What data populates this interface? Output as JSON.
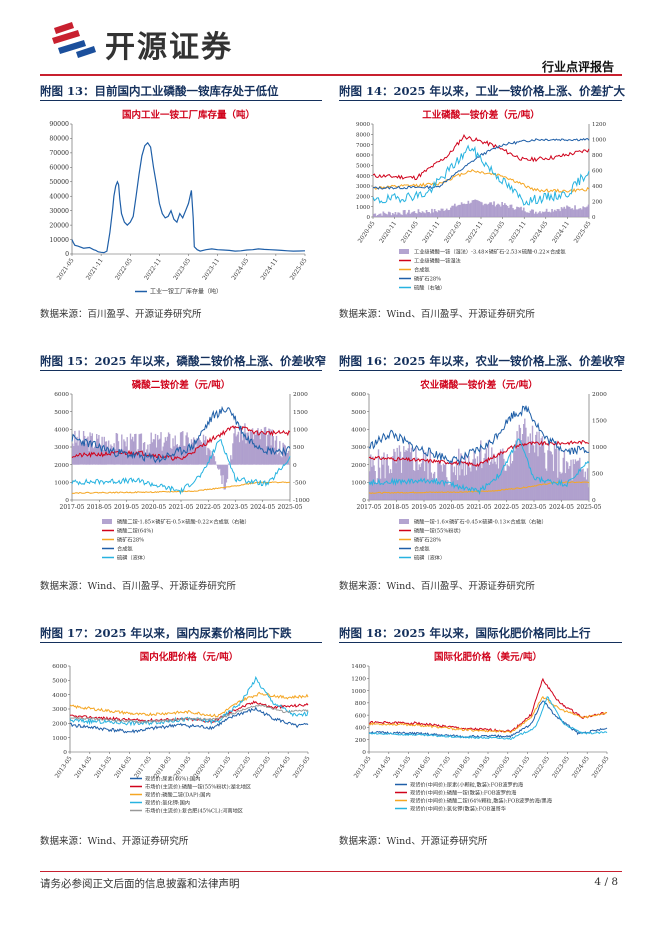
{
  "header": {
    "logo_text": "开源证券",
    "doc_type": "行业点评报告"
  },
  "colors": {
    "brand_red": "#c8202f",
    "brand_blue": "#1b4f9c",
    "title_navy": "#14305c",
    "chart_title_red": "#d0021b"
  },
  "figures": [
    {
      "title": "附图 13：目前国内工业磷酸一铵库存处于低位",
      "source": "数据来源：百川盈孚、开源证券研究所"
    },
    {
      "title": "附图 14：2025 年以来，工业一铵价格上涨、价差扩大",
      "source": "数据来源：Wind、百川盈孚、开源证券研究所"
    },
    {
      "title": "附图 15：2025 年以来，磷酸二铵价格上涨、价差收窄",
      "source": "数据来源：Wind、百川盈孚、开源证券研究所"
    },
    {
      "title": "附图 16：2025 年以来，农业一铵价格上涨、价差收窄",
      "source": "数据来源：Wind、百川盈孚、开源证券研究所"
    },
    {
      "title": "附图 17：2025 年以来，国内尿素价格同比下跌",
      "source": "数据来源：Wind、开源证券研究所"
    },
    {
      "title": "附图 18：2025 年以来，国际化肥价格同比上行",
      "source": "数据来源：Wind、开源证券研究所"
    }
  ],
  "chart_data": [
    {
      "id": "fig13",
      "type": "line",
      "title": "国内工业一铵工厂库存量（吨）",
      "x_ticks": [
        "2021-05",
        "2021-11",
        "2022-05",
        "2022-11",
        "2023-05",
        "2023-11",
        "2024-05",
        "2024-11",
        "2025-05"
      ],
      "y_ticks": [
        0,
        10000,
        20000,
        30000,
        40000,
        50000,
        60000,
        70000,
        80000,
        90000
      ],
      "ylim": [
        0,
        90000
      ],
      "series": [
        {
          "name": "工业一铵工厂库存量（吨）",
          "color": "#1f5fa8",
          "x": [
            0,
            0.02,
            0.05,
            0.1,
            0.2,
            0.3,
            0.37,
            0.41,
            0.43,
            0.45,
            0.5,
            0.55,
            0.6,
            0.65,
            0.7,
            0.72,
            0.75,
            0.78,
            0.8,
            0.82,
            0.85,
            0.9,
            0.95,
            1.0,
            1.05,
            1.1,
            1.15,
            1.2,
            1.25,
            1.3,
            1.35,
            1.4,
            1.45,
            1.5,
            1.55,
            1.6,
            1.65,
            1.7,
            1.75,
            1.8,
            1.85,
            1.9,
            1.95,
            2.0,
            2.05,
            2.08,
            2.1,
            2.15,
            2.2,
            2.3,
            2.4,
            2.5,
            2.6,
            2.7,
            2.8,
            2.9,
            3.0,
            3.1,
            3.2,
            3.3,
            3.4,
            3.5,
            3.6,
            3.7,
            3.8,
            3.9,
            4.0
          ],
          "y": [
            10000,
            8000,
            6000,
            5500,
            4000,
            4500,
            3000,
            2500,
            2000,
            1500,
            1200,
            1000,
            2000,
            15000,
            32000,
            40000,
            47000,
            50000,
            48000,
            38000,
            28000,
            22000,
            20000,
            22000,
            26000,
            40000,
            55000,
            68000,
            75000,
            77000,
            74000,
            60000,
            48000,
            35000,
            28000,
            25000,
            26000,
            30000,
            24000,
            22000,
            28000,
            25000,
            30000,
            35000,
            44000,
            25000,
            5000,
            3000,
            2000,
            3000,
            3500,
            3000,
            2800,
            2500,
            2000,
            2200,
            2800,
            3000,
            3500,
            3200,
            3000,
            2800,
            2500,
            2200,
            2000,
            2100,
            2200
          ]
        }
      ]
    },
    {
      "id": "fig14",
      "type": "line",
      "title": "工业磷酸一铵价差（元/吨）",
      "x_ticks": [
        "2020-05",
        "2020-11",
        "2021-05",
        "2021-11",
        "2022-05",
        "2022-11",
        "2023-05",
        "2023-11",
        "2024-05",
        "2024-11",
        "2025-05"
      ],
      "y_left_ticks": [
        0,
        1000,
        2000,
        3000,
        4000,
        5000,
        6000,
        7000,
        8000,
        9000
      ],
      "y_right_ticks": [
        0,
        200,
        400,
        600,
        800,
        1000,
        1200
      ],
      "ylim_left": [
        0,
        9000
      ],
      "ylim_right": [
        0,
        1200
      ],
      "series": [
        {
          "name": "工业级磷酸一铵（湿法）-3.48×磷矿石-2.53×硫酸-0.22×合成氨",
          "color": "#a694c8",
          "axis": "left",
          "style": "area"
        },
        {
          "name": "工业级磷酸一铵湿法",
          "color": "#d0021b",
          "axis": "left"
        },
        {
          "name": "合成氨",
          "color": "#f5a623",
          "axis": "left"
        },
        {
          "name": "磷矿石28%",
          "color": "#1f5fa8",
          "axis": "left"
        },
        {
          "name": "硫酸（右轴）",
          "color": "#27b3e0",
          "axis": "right"
        }
      ]
    },
    {
      "id": "fig15",
      "type": "line",
      "title": "磷酸二铵价差（元/吨）",
      "x_ticks": [
        "2017-05",
        "2018-05",
        "2019-05",
        "2020-05",
        "2021-05",
        "2022-05",
        "2023-05",
        "2024-05",
        "2025-05"
      ],
      "y_left_ticks": [
        0,
        1000,
        2000,
        3000,
        4000,
        5000,
        6000
      ],
      "y_right_ticks": [
        -1000,
        -500,
        0,
        500,
        1000,
        1500,
        2000
      ],
      "ylim_left": [
        0,
        6000
      ],
      "ylim_right": [
        -1000,
        2000
      ],
      "series": [
        {
          "name": "磷酸二铵-1.85×磷矿石-0.5×硫酸-0.22×合成氨（右轴）",
          "color": "#a694c8",
          "axis": "right",
          "style": "area"
        },
        {
          "name": "磷酸二铵(64%)",
          "color": "#d0021b",
          "axis": "left"
        },
        {
          "name": "磷矿石28%",
          "color": "#f5a623",
          "axis": "left"
        },
        {
          "name": "合成氨",
          "color": "#1f5fa8",
          "axis": "left"
        },
        {
          "name": "硫磺（液体）",
          "color": "#27b3e0",
          "axis": "left"
        }
      ]
    },
    {
      "id": "fig16",
      "type": "line",
      "title": "农业磷酸一铵价差（元/吨）",
      "x_ticks": [
        "2017-05",
        "2018-05",
        "2019-05",
        "2020-05",
        "2021-05",
        "2022-05",
        "2023-05",
        "2024-05",
        "2025-05"
      ],
      "y_left_ticks": [
        0,
        1000,
        2000,
        3000,
        4000,
        5000,
        6000
      ],
      "y_right_ticks": [
        0,
        500,
        1000,
        1500,
        2000
      ],
      "ylim_left": [
        0,
        6000
      ],
      "ylim_right": [
        0,
        2000
      ],
      "series": [
        {
          "name": "磷酸一铵-1.6×磷矿石-0.45×硫磺-0.13×合成氨（右轴）",
          "color": "#a694c8",
          "axis": "right",
          "style": "area"
        },
        {
          "name": "磷酸一铵(55%粉状)",
          "color": "#d0021b",
          "axis": "left"
        },
        {
          "name": "磷矿石28%",
          "color": "#f5a623",
          "axis": "left"
        },
        {
          "name": "合成氨",
          "color": "#1f5fa8",
          "axis": "left"
        },
        {
          "name": "硫磺（液体）",
          "color": "#27b3e0",
          "axis": "left"
        }
      ]
    },
    {
      "id": "fig17",
      "type": "line",
      "title": "国内化肥价格（元/吨）",
      "x_ticks": [
        "2013-05",
        "2014-05",
        "2015-05",
        "2016-05",
        "2017-05",
        "2018-05",
        "2019-05",
        "2020-05",
        "2021-05",
        "2022-05",
        "2023-05",
        "2024-05",
        "2025-05"
      ],
      "y_ticks": [
        0,
        1000,
        2000,
        3000,
        4000,
        5000,
        6000
      ],
      "ylim": [
        0,
        6000
      ],
      "series": [
        {
          "name": "现货价:尿素(46%):国内",
          "color": "#1f5fa8"
        },
        {
          "name": "市场价(主流价):磷酸一铵(55%粉状):湖北地区",
          "color": "#d0021b"
        },
        {
          "name": "现货价:磷酸二铵(DAP):国内",
          "color": "#f5a623"
        },
        {
          "name": "现货价:氯化钾:国内",
          "color": "#27b3e0"
        },
        {
          "name": "市场价(主流价):复合肥(45%CL):河南地区",
          "color": "#999999"
        }
      ]
    },
    {
      "id": "fig18",
      "type": "line",
      "title": "国际化肥价格（美元/吨）",
      "x_ticks": [
        "2013-05",
        "2014-05",
        "2015-05",
        "2016-05",
        "2017-05",
        "2018-05",
        "2019-05",
        "2020-05",
        "2021-05",
        "2022-05",
        "2023-05",
        "2024-05",
        "2025-05"
      ],
      "y_ticks": [
        0,
        200,
        400,
        600,
        800,
        1000,
        1200,
        1400
      ],
      "ylim": [
        0,
        1400
      ],
      "series": [
        {
          "name": "现货价(中间价):尿素(小颗粒,散装):FOB波罗的海",
          "color": "#1f5fa8"
        },
        {
          "name": "现货价(中间价):磷酸一铵(散装):FOB波罗的海",
          "color": "#d0021b"
        },
        {
          "name": "现货价(中间价):磷酸二铵(64%颗粒,散装):FOB波罗的海/黑海",
          "color": "#f5a623"
        },
        {
          "name": "现货价(中间价):氯化钾(散装):FOB温哥华",
          "color": "#27b3e0"
        }
      ]
    }
  ],
  "footer": {
    "disclaimer": "请务必参阅正文后面的信息披露和法律声明",
    "page": "4 / 8"
  }
}
